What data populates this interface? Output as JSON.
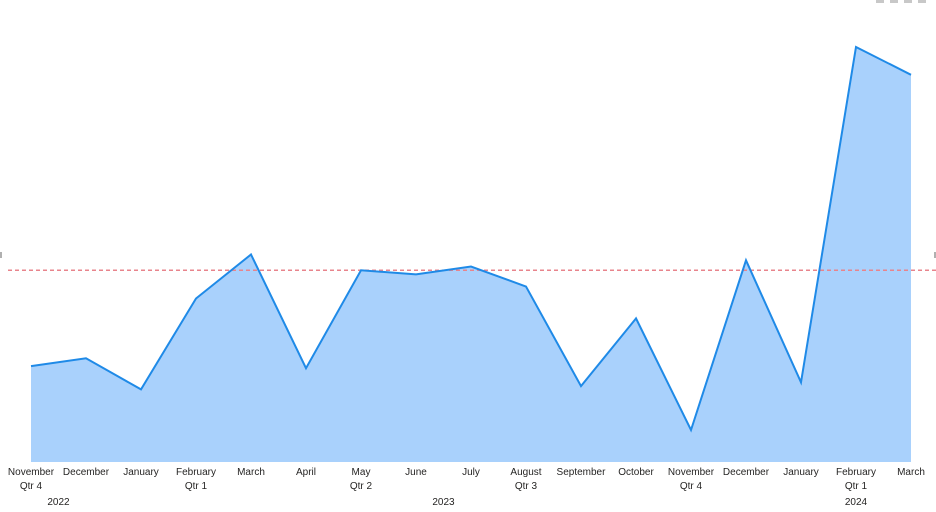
{
  "chart_data": {
    "type": "area",
    "title": "",
    "xlabel": "",
    "ylabel": "",
    "ylim": [
      0,
      100
    ],
    "grid": false,
    "legend": "none",
    "x": [
      "Nov 2022",
      "Dec 2022",
      "Jan 2023",
      "Feb 2023",
      "Mar 2023",
      "Apr 2023",
      "May 2023",
      "Jun 2023",
      "Jul 2023",
      "Aug 2023",
      "Sep 2023",
      "Oct 2023",
      "Nov 2023",
      "Dec 2023",
      "Jan 2024",
      "Feb 2024",
      "Mar 2024"
    ],
    "month_labels": [
      "November",
      "December",
      "January",
      "February",
      "March",
      "April",
      "May",
      "June",
      "July",
      "August",
      "September",
      "October",
      "November",
      "December",
      "January",
      "February",
      "March"
    ],
    "quarter_labels": [
      {
        "label": "Qtr 4",
        "index": 0
      },
      {
        "label": "Qtr 1",
        "index": 3
      },
      {
        "label": "Qtr 2",
        "index": 6
      },
      {
        "label": "Qtr 3",
        "index": 9
      },
      {
        "label": "Qtr 4",
        "index": 12
      },
      {
        "label": "Qtr 1",
        "index": 15
      }
    ],
    "year_labels": [
      {
        "label": "2022",
        "index": 0.5
      },
      {
        "label": "2023",
        "index": 7.5
      },
      {
        "label": "2024",
        "index": 15
      }
    ],
    "series": [
      {
        "values": [
          23.1,
          25.0,
          17.5,
          39.4,
          50.0,
          22.6,
          46.2,
          45.2,
          47.1,
          42.3,
          18.3,
          34.6,
          7.7,
          48.6,
          19.2,
          100.0,
          93.3
        ]
      }
    ],
    "reference_line": {
      "value": 46.2
    },
    "colors": {
      "fill": "#a9d1fc",
      "line": "#1f8ae7",
      "reference": "#e8848c",
      "text": "#252423"
    }
  }
}
